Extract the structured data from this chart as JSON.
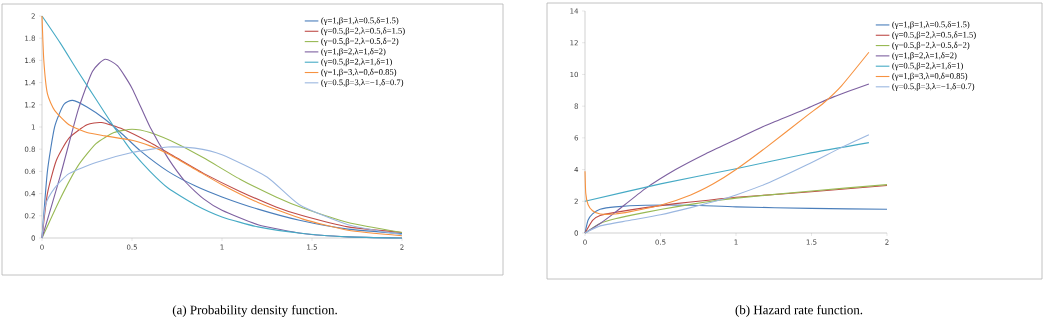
{
  "chart_data": [
    {
      "type": "line",
      "xlim": [
        0,
        2
      ],
      "ylim": [
        0,
        2
      ],
      "xticks": [
        0,
        0.5,
        1,
        1.5,
        2
      ],
      "yticks": [
        0,
        0.2,
        0.4,
        0.6,
        0.8,
        1,
        1.2,
        1.4,
        1.6,
        1.8,
        2
      ],
      "legend": "right",
      "annotations": [
        "(a) Probability density function."
      ],
      "series": [
        {
          "name": "(γ=1,β=1,λ=0.5,δ=1.5)",
          "color": "#4a7ebb",
          "x": [
            0,
            0.03,
            0.07,
            0.12,
            0.17,
            0.25,
            0.35,
            0.45,
            0.55,
            0.7,
            0.85,
            1.0,
            1.2,
            1.43,
            1.7,
            2
          ],
          "values": [
            0,
            0.6,
            1.0,
            1.2,
            1.24,
            1.18,
            1.07,
            0.93,
            0.78,
            0.6,
            0.47,
            0.37,
            0.26,
            0.16,
            0.08,
            0.04
          ]
        },
        {
          "name": "(γ=0.5,β=2,λ=0.5,δ=1.5)",
          "color": "#be4b48",
          "x": [
            0,
            0.03,
            0.08,
            0.15,
            0.25,
            0.33,
            0.45,
            0.6,
            0.75,
            0.9,
            1.1,
            1.3,
            1.45,
            1.7,
            2
          ],
          "values": [
            0,
            0.4,
            0.7,
            0.9,
            1.02,
            1.04,
            0.98,
            0.86,
            0.72,
            0.58,
            0.42,
            0.28,
            0.2,
            0.1,
            0.05
          ]
        },
        {
          "name": "(γ=0.5,β=2,λ=0.5,δ=2)",
          "color": "#98b954",
          "x": [
            0,
            0.1,
            0.2,
            0.3,
            0.4,
            0.5,
            0.6,
            0.75,
            0.9,
            1.1,
            1.3,
            1.45,
            1.7,
            2
          ],
          "values": [
            0,
            0.35,
            0.65,
            0.85,
            0.95,
            0.98,
            0.95,
            0.85,
            0.72,
            0.53,
            0.37,
            0.27,
            0.14,
            0.05
          ]
        },
        {
          "name": "(γ=1,β=2,λ=1,δ=2)",
          "color": "#7d60a0",
          "x": [
            0,
            0.1,
            0.2,
            0.28,
            0.35,
            0.42,
            0.5,
            0.6,
            0.7,
            0.8,
            0.9,
            1.0,
            1.2,
            1.45,
            1.7,
            2
          ],
          "values": [
            0,
            0.55,
            1.15,
            1.5,
            1.61,
            1.55,
            1.35,
            1.0,
            0.72,
            0.5,
            0.35,
            0.25,
            0.12,
            0.04,
            0.01,
            0
          ]
        },
        {
          "name": "(γ=0.5,β=2,λ=1,δ=1)",
          "color": "#46aac5",
          "x": [
            0,
            0.1,
            0.2,
            0.3,
            0.4,
            0.45,
            0.5,
            0.6,
            0.7,
            0.85,
            1.0,
            1.2,
            1.45,
            1.7,
            2
          ],
          "values": [
            2,
            1.76,
            1.5,
            1.25,
            1.0,
            0.89,
            0.78,
            0.6,
            0.45,
            0.3,
            0.19,
            0.1,
            0.04,
            0.01,
            0
          ]
        },
        {
          "name": "(γ=1,β=3,λ=0,δ=0.85)",
          "color": "#f69240",
          "x": [
            0,
            0.01,
            0.03,
            0.07,
            0.15,
            0.25,
            0.35,
            0.5,
            0.6,
            0.7,
            0.85,
            1.0,
            1.2,
            1.45,
            1.7,
            2
          ],
          "values": [
            2,
            1.6,
            1.3,
            1.15,
            1.02,
            0.95,
            0.92,
            0.88,
            0.83,
            0.76,
            0.62,
            0.48,
            0.32,
            0.17,
            0.07,
            0.02
          ]
        },
        {
          "name": "(γ=0.5,β=3,λ=−1,δ=0.7)",
          "color": "#9bb7e0",
          "x": [
            0,
            0.02,
            0.07,
            0.15,
            0.3,
            0.5,
            0.7,
            0.85,
            1.0,
            1.25,
            1.43,
            1.7,
            2
          ],
          "values": [
            0,
            0.3,
            0.45,
            0.58,
            0.68,
            0.77,
            0.82,
            0.81,
            0.75,
            0.55,
            0.3,
            0.12,
            0.03
          ]
        }
      ]
    },
    {
      "type": "line",
      "xlim": [
        0,
        2
      ],
      "ylim": [
        0,
        14
      ],
      "xticks": [
        0,
        0.5,
        1,
        1.5,
        2
      ],
      "yticks": [
        0,
        2,
        4,
        6,
        8,
        10,
        12,
        14
      ],
      "legend": "right",
      "annotations": [
        "(b) Hazard rate function."
      ],
      "series": [
        {
          "name": "(γ=1,β=1,λ=0.5,δ=1.5)",
          "color": "#4a7ebb",
          "x": [
            0,
            0.02,
            0.05,
            0.1,
            0.2,
            0.4,
            0.7,
            1.0,
            1.5,
            2
          ],
          "values": [
            0,
            0.8,
            1.2,
            1.5,
            1.65,
            1.75,
            1.75,
            1.65,
            1.55,
            1.5
          ]
        },
        {
          "name": "(γ=0.5,β=2,λ=0.5,δ=1.5)",
          "color": "#be4b48",
          "x": [
            0,
            0.05,
            0.1,
            0.2,
            0.4,
            0.6,
            0.8,
            1.0,
            1.5,
            2
          ],
          "values": [
            0,
            0.8,
            1.1,
            1.3,
            1.6,
            1.85,
            2.05,
            2.25,
            2.6,
            3.0
          ]
        },
        {
          "name": "(γ=0.5,β=2,λ=0.5,δ=2)",
          "color": "#98b954",
          "x": [
            0,
            0.1,
            0.2,
            0.4,
            0.6,
            0.8,
            1.0,
            1.5,
            2
          ],
          "values": [
            0,
            0.6,
            0.9,
            1.3,
            1.65,
            1.95,
            2.2,
            2.65,
            3.05
          ]
        },
        {
          "name": "(γ=1,β=2,λ=1,δ=2)",
          "color": "#7d60a0",
          "x": [
            0,
            0.1,
            0.2,
            0.4,
            0.6,
            0.8,
            1.0,
            1.2,
            1.47,
            1.65,
            1.88
          ],
          "values": [
            0,
            0.6,
            1.3,
            2.8,
            4.0,
            5.0,
            5.9,
            6.8,
            7.85,
            8.6,
            9.4
          ]
        },
        {
          "name": "(γ=0.5,β=2,λ=1,δ=1)",
          "color": "#46aac5",
          "x": [
            0,
            0.5,
            1,
            1.47,
            1.88
          ],
          "values": [
            2,
            3.1,
            4.05,
            5.0,
            5.7
          ]
        },
        {
          "name": "(γ=1,β=3,λ=0,δ=0.85)",
          "color": "#f69240",
          "x": [
            0,
            0.005,
            0.02,
            0.05,
            0.1,
            0.2,
            0.3,
            0.5,
            0.7,
            0.85,
            1.0,
            1.2,
            1.47,
            1.58,
            1.7,
            1.88
          ],
          "values": [
            3.9,
            2.5,
            1.8,
            1.4,
            1.2,
            1.2,
            1.35,
            1.75,
            2.4,
            3.1,
            4.0,
            5.4,
            7.4,
            8.2,
            9.3,
            11.4
          ]
        },
        {
          "name": "(γ=0.5,β=3,λ=−1,δ=0.7)",
          "color": "#9bb7e0",
          "x": [
            0,
            0.1,
            0.3,
            0.5,
            0.7,
            0.9,
            1.0,
            1.2,
            1.47,
            1.7,
            1.88
          ],
          "values": [
            0,
            0.45,
            0.8,
            1.15,
            1.6,
            2.1,
            2.4,
            3.1,
            4.3,
            5.4,
            6.2
          ]
        }
      ]
    }
  ]
}
